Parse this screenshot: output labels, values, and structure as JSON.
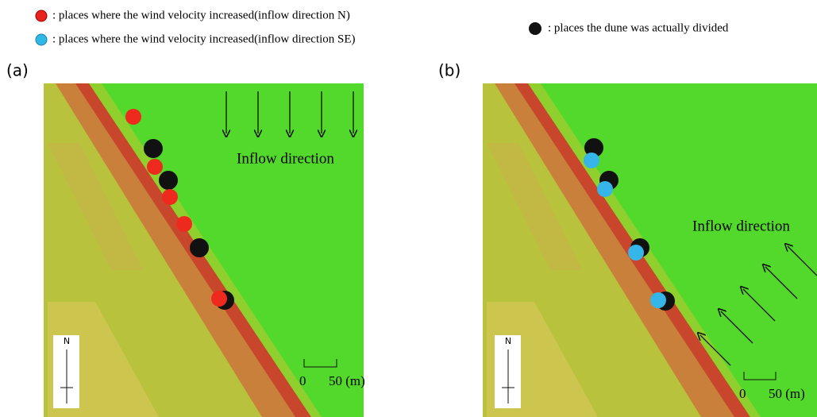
{
  "legend": [
    ": places where the wind velocity increased(inflow direction N)",
    ": places where the wind velocity increased(inflow direction SE)",
    ": places the dune was actually divided"
  ],
  "panels": [
    {
      "label": "(a)",
      "inflow": "Inflow direction",
      "scale_start": "0",
      "scale_end": "50 (m)",
      "north": "N"
    },
    {
      "label": "(b)",
      "inflow": "Inflow direction",
      "scale_start": "0",
      "scale_end": "50 (m)",
      "north": "N"
    }
  ]
}
